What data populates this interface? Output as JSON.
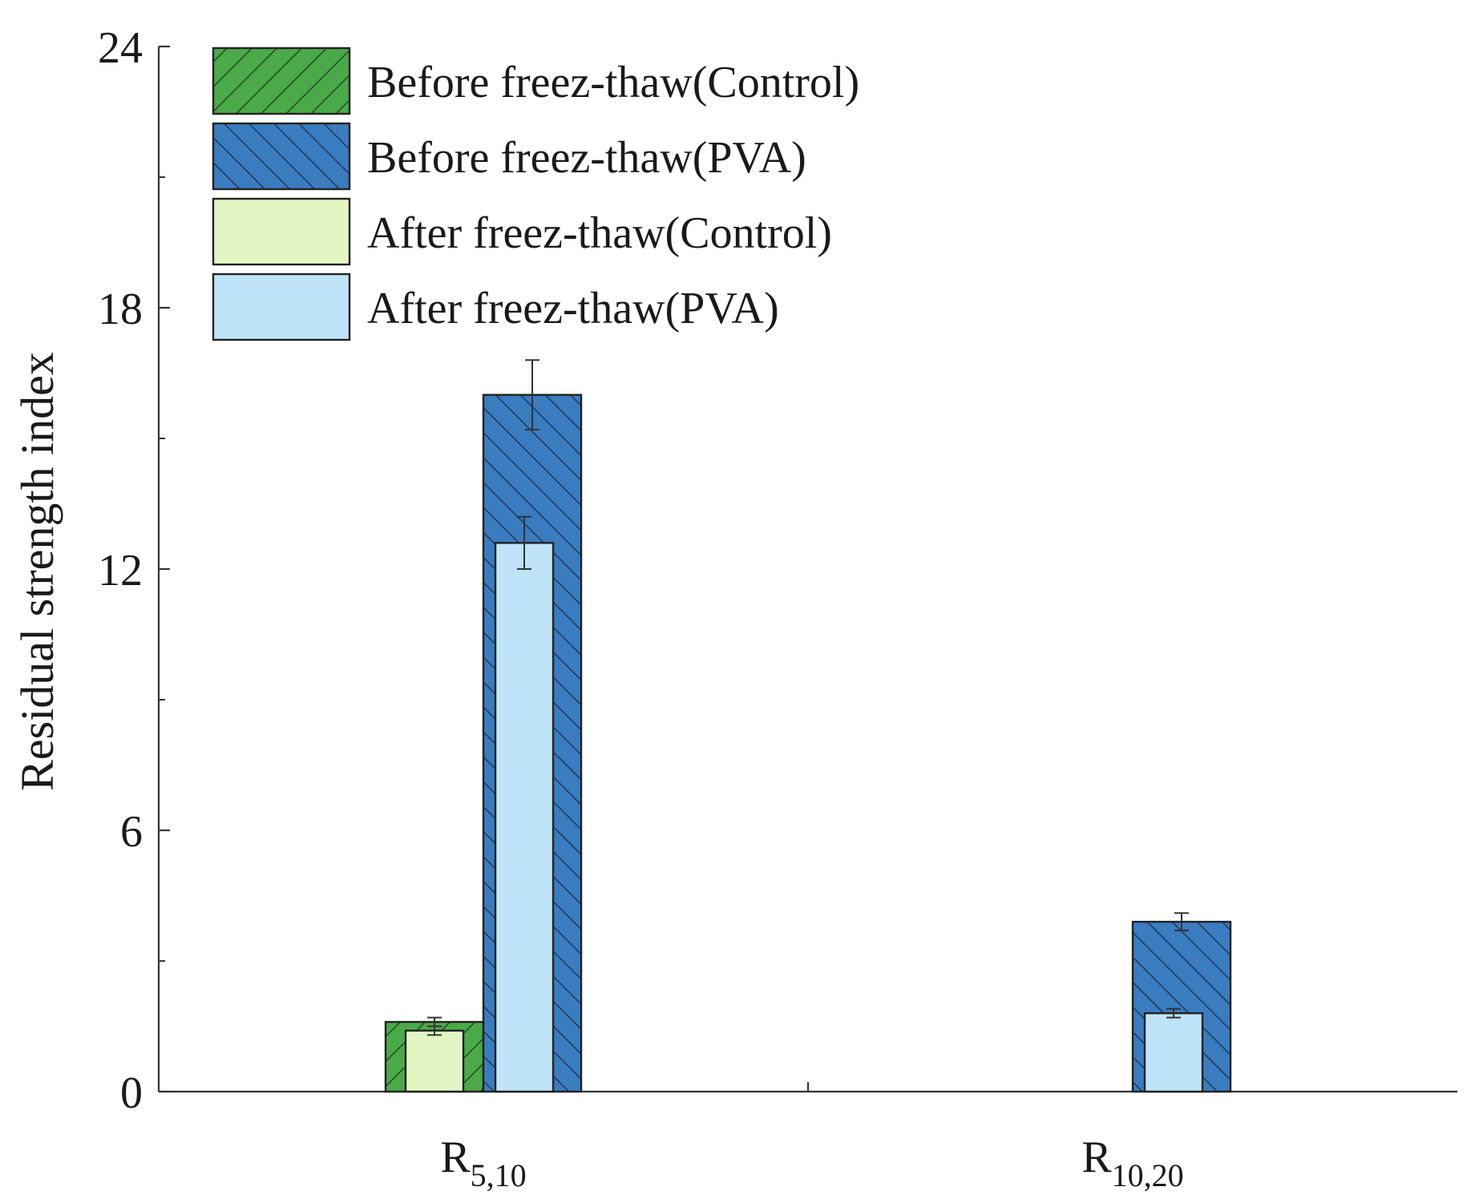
{
  "chart_data": {
    "type": "bar",
    "title": "",
    "xlabel": "",
    "ylabel": "Residual strength index",
    "ylim": [
      0,
      24
    ],
    "yticks": [
      0,
      6,
      12,
      18,
      24
    ],
    "categories": [
      {
        "base": "R",
        "sub": "5,10"
      },
      {
        "base": "R",
        "sub": "10,20"
      }
    ],
    "series": [
      {
        "name": "Before freez-thaw(Control)",
        "color": "#4aaa48",
        "pattern": "hatch-forward",
        "values": [
          1.6,
          0
        ],
        "errors": [
          0.1,
          0
        ]
      },
      {
        "name": "Before freez-thaw(PVA)",
        "color": "#3a7cc0",
        "pattern": "hatch-back",
        "values": [
          16.0,
          3.9
        ],
        "errors": [
          0.8,
          0.2
        ]
      },
      {
        "name": "After freez-thaw(Control)",
        "color": "#e2f6c4",
        "pattern": "solid",
        "values": [
          1.4,
          0
        ],
        "errors": [
          0.1,
          0
        ]
      },
      {
        "name": "After freez-thaw(PVA)",
        "color": "#bfe4fa",
        "pattern": "solid",
        "values": [
          12.6,
          1.8
        ],
        "errors": [
          0.6,
          0.1
        ]
      }
    ],
    "grid": false,
    "legend_position": "top-left"
  }
}
